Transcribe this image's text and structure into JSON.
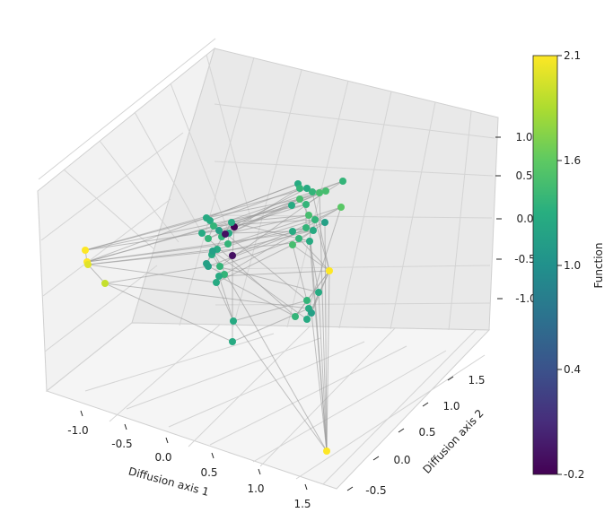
{
  "chart_data": {
    "type": "scatter",
    "projection": "3d",
    "xlabel": "Diffusion axis 1",
    "ylabel": "Diffusion axis 2",
    "zlabel": "",
    "xticks": [
      "-1.0",
      "-0.5",
      "0.0",
      "0.5",
      "1.0",
      "1.5"
    ],
    "yticks": [
      "-0.5",
      "0.0",
      "0.5",
      "1.0",
      "1.5"
    ],
    "zticks": [
      "1.0",
      "0.5",
      "0.0",
      "-0.5",
      "-1.0"
    ],
    "grid": true,
    "colorbar": {
      "label": "Function",
      "colormap": "viridis",
      "range": [
        -0.2,
        2.1
      ],
      "ticks": [
        "2.1",
        "1.6",
        "1.0",
        "0.4",
        "-0.2"
      ]
    },
    "edge_color": "#9a9a9a",
    "points": [
      {
        "id": "a1",
        "value": 2.1
      },
      {
        "id": "a2",
        "value": 2.1
      },
      {
        "id": "a3",
        "value": 2.0
      },
      {
        "id": "a4",
        "value": 1.9
      },
      {
        "id": "b1",
        "value": 1.2
      },
      {
        "id": "b2",
        "value": 1.2
      },
      {
        "id": "b3",
        "value": 1.3
      },
      {
        "id": "b4",
        "value": 1.2
      },
      {
        "id": "b5",
        "value": 1.3
      },
      {
        "id": "b6",
        "value": 1.1
      },
      {
        "id": "b7",
        "value": 1.3
      },
      {
        "id": "b8",
        "value": 1.2
      },
      {
        "id": "b9",
        "value": -0.2
      },
      {
        "id": "b10",
        "value": -0.1
      },
      {
        "id": "b11",
        "value": 1.2
      },
      {
        "id": "b12",
        "value": 1.3
      },
      {
        "id": "b13",
        "value": 1.2
      },
      {
        "id": "b14",
        "value": 1.1
      },
      {
        "id": "b15",
        "value": -0.1
      },
      {
        "id": "b16",
        "value": 1.3
      },
      {
        "id": "b17",
        "value": 1.2
      },
      {
        "id": "b18",
        "value": 1.3
      },
      {
        "id": "b19",
        "value": 1.2
      },
      {
        "id": "b20",
        "value": 1.2
      },
      {
        "id": "b21",
        "value": 1.2
      },
      {
        "id": "b22",
        "value": 1.1
      },
      {
        "id": "b23",
        "value": 1.2
      },
      {
        "id": "b24",
        "value": 1.1
      },
      {
        "id": "c1",
        "value": 1.2
      },
      {
        "id": "c2",
        "value": 1.3
      },
      {
        "id": "c3",
        "value": 1.2
      },
      {
        "id": "c4",
        "value": 1.3
      },
      {
        "id": "c5",
        "value": 1.4
      },
      {
        "id": "c6",
        "value": 1.4
      },
      {
        "id": "c7",
        "value": 1.3
      },
      {
        "id": "c8",
        "value": 1.2
      },
      {
        "id": "c9",
        "value": 1.4
      },
      {
        "id": "c10",
        "value": 1.3
      },
      {
        "id": "c11",
        "value": 1.4
      },
      {
        "id": "c12",
        "value": 1.3
      },
      {
        "id": "c13",
        "value": 1.3
      },
      {
        "id": "c14",
        "value": 1.2
      },
      {
        "id": "c15",
        "value": 1.1
      },
      {
        "id": "c16",
        "value": 1.2
      },
      {
        "id": "c17",
        "value": 1.3
      },
      {
        "id": "c18",
        "value": 1.4
      },
      {
        "id": "c19",
        "value": 1.5
      },
      {
        "id": "c20",
        "value": 1.2
      },
      {
        "id": "c21",
        "value": 1.3
      },
      {
        "id": "c22",
        "value": 1.2
      },
      {
        "id": "c23",
        "value": 1.2
      },
      {
        "id": "c24",
        "value": 1.3
      },
      {
        "id": "c25",
        "value": 1.2
      },
      {
        "id": "c26",
        "value": 1.1
      },
      {
        "id": "d1",
        "value": 2.1
      },
      {
        "id": "d2",
        "value": 2.1
      }
    ],
    "edges": [
      [
        "a1",
        "b1"
      ],
      [
        "a1",
        "b6"
      ],
      [
        "a1",
        "c3"
      ],
      [
        "a1",
        "c10"
      ],
      [
        "a2",
        "b3"
      ],
      [
        "a2",
        "b12"
      ],
      [
        "a2",
        "c1"
      ],
      [
        "a2",
        "c8"
      ],
      [
        "a2",
        "c14"
      ],
      [
        "a3",
        "b11"
      ],
      [
        "a3",
        "c20"
      ],
      [
        "a3",
        "b17"
      ],
      [
        "a4",
        "b21"
      ],
      [
        "a4",
        "c22"
      ],
      [
        "a4",
        "b14"
      ],
      [
        "a1",
        "a2"
      ],
      [
        "a2",
        "a3"
      ],
      [
        "a3",
        "a4"
      ],
      [
        "b1",
        "c1"
      ],
      [
        "b2",
        "c2"
      ],
      [
        "b3",
        "c4"
      ],
      [
        "b4",
        "c5"
      ],
      [
        "b5",
        "c6"
      ],
      [
        "b6",
        "c7"
      ],
      [
        "b7",
        "c8"
      ],
      [
        "b8",
        "c9"
      ],
      [
        "b9",
        "c10"
      ],
      [
        "b10",
        "c11"
      ],
      [
        "b11",
        "c12"
      ],
      [
        "b12",
        "c13"
      ],
      [
        "b13",
        "c14"
      ],
      [
        "b14",
        "c15"
      ],
      [
        "b15",
        "c16"
      ],
      [
        "b16",
        "c17"
      ],
      [
        "b17",
        "c18"
      ],
      [
        "b18",
        "c19"
      ],
      [
        "b19",
        "c20"
      ],
      [
        "b20",
        "c21"
      ],
      [
        "b21",
        "c22"
      ],
      [
        "b22",
        "c23"
      ],
      [
        "b23",
        "c24"
      ],
      [
        "b24",
        "c25"
      ],
      [
        "b1",
        "c9"
      ],
      [
        "b3",
        "c12"
      ],
      [
        "b5",
        "c3"
      ],
      [
        "b8",
        "c16"
      ],
      [
        "b10",
        "c2"
      ],
      [
        "b12",
        "c19"
      ],
      [
        "b16",
        "c6"
      ],
      [
        "b19",
        "c11"
      ],
      [
        "b2",
        "c21"
      ],
      [
        "b4",
        "c24"
      ],
      [
        "b1",
        "b2"
      ],
      [
        "b2",
        "b3"
      ],
      [
        "b3",
        "b5"
      ],
      [
        "b4",
        "b6"
      ],
      [
        "b6",
        "b9"
      ],
      [
        "b7",
        "b10"
      ],
      [
        "b9",
        "b15"
      ],
      [
        "b11",
        "b13"
      ],
      [
        "b13",
        "b16"
      ],
      [
        "b14",
        "b18"
      ],
      [
        "b17",
        "b20"
      ],
      [
        "b19",
        "b22"
      ],
      [
        "b20",
        "b23"
      ],
      [
        "b22",
        "b24"
      ],
      [
        "b15",
        "b21"
      ],
      [
        "b8",
        "b12"
      ],
      [
        "c1",
        "c2"
      ],
      [
        "c2",
        "c4"
      ],
      [
        "c3",
        "c5"
      ],
      [
        "c4",
        "c7"
      ],
      [
        "c5",
        "c9"
      ],
      [
        "c6",
        "c8"
      ],
      [
        "c7",
        "c10"
      ],
      [
        "c9",
        "c11"
      ],
      [
        "c10",
        "c13"
      ],
      [
        "c12",
        "c14"
      ],
      [
        "c13",
        "c16"
      ],
      [
        "c14",
        "c17"
      ],
      [
        "c15",
        "c18"
      ],
      [
        "c17",
        "c20"
      ],
      [
        "c18",
        "c21"
      ],
      [
        "c19",
        "c22"
      ],
      [
        "c20",
        "c23"
      ],
      [
        "c21",
        "c24"
      ],
      [
        "c22",
        "c25"
      ],
      [
        "c23",
        "c26"
      ],
      [
        "c11",
        "c15"
      ],
      [
        "c16",
        "c19"
      ],
      [
        "d1",
        "c4"
      ],
      [
        "d1",
        "c12"
      ],
      [
        "d1",
        "c17"
      ],
      [
        "d1",
        "c21"
      ],
      [
        "d1",
        "c24"
      ],
      [
        "d1",
        "c26"
      ],
      [
        "d1",
        "b23"
      ],
      [
        "d1",
        "c25"
      ],
      [
        "d1",
        "c18"
      ],
      [
        "d2",
        "c5"
      ],
      [
        "d2",
        "c11"
      ],
      [
        "d2",
        "c15"
      ],
      [
        "d2",
        "c20"
      ],
      [
        "d2",
        "c23"
      ],
      [
        "d2",
        "b20"
      ],
      [
        "d2",
        "b24"
      ],
      [
        "d2",
        "c26"
      ],
      [
        "d2",
        "d1"
      ]
    ]
  }
}
